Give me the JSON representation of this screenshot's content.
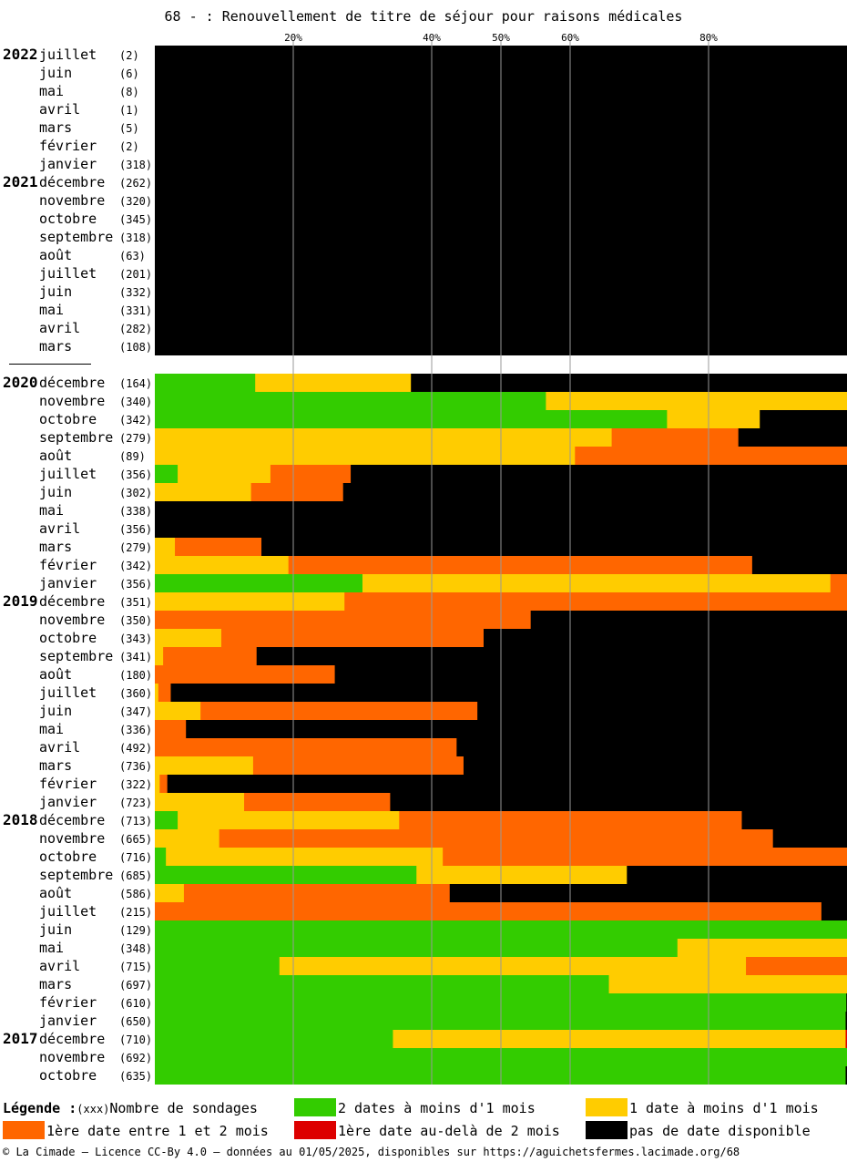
{
  "chart_data": {
    "type": "bar",
    "stacked": true,
    "orientation": "horizontal",
    "title": "68 - : Renouvellement de titre de séjour pour raisons médicales",
    "x_ticks": [
      "20%",
      "40%",
      "50%",
      "60%",
      "80%"
    ],
    "xlim": [
      0,
      100
    ],
    "grid": true,
    "colors": {
      "green": "#33cc00",
      "yellow": "#ffcc00",
      "orange": "#ff6600",
      "red": "#dd0000",
      "black": "#000000"
    },
    "series_order": [
      "green",
      "yellow",
      "orange",
      "red",
      "black"
    ],
    "rows": [
      {
        "year": "2022",
        "month": "juillet",
        "count": "(2)",
        "values": [
          0,
          0,
          0,
          0,
          100
        ]
      },
      {
        "year": "",
        "month": "juin",
        "count": "(6)",
        "values": [
          0,
          0,
          0,
          0,
          100
        ]
      },
      {
        "year": "",
        "month": "mai",
        "count": "(8)",
        "values": [
          0,
          0,
          0,
          0,
          100
        ]
      },
      {
        "year": "",
        "month": "avril",
        "count": "(1)",
        "values": [
          0,
          0,
          0,
          0,
          100
        ]
      },
      {
        "year": "",
        "month": "mars",
        "count": "(5)",
        "values": [
          0,
          0,
          0,
          0,
          100
        ]
      },
      {
        "year": "",
        "month": "février",
        "count": "(2)",
        "values": [
          0,
          0,
          0,
          0,
          100
        ]
      },
      {
        "year": "",
        "month": "janvier",
        "count": "(318)",
        "values": [
          0,
          0,
          0,
          0,
          100
        ]
      },
      {
        "year": "2021",
        "month": "décembre",
        "count": "(262)",
        "values": [
          0,
          0,
          0,
          0,
          100
        ]
      },
      {
        "year": "",
        "month": "novembre",
        "count": "(320)",
        "values": [
          0,
          0,
          0,
          0,
          100
        ]
      },
      {
        "year": "",
        "month": "octobre",
        "count": "(345)",
        "values": [
          0,
          0,
          0,
          0,
          100
        ]
      },
      {
        "year": "",
        "month": "septembre",
        "count": "(318)",
        "values": [
          0,
          0,
          0,
          0,
          100
        ]
      },
      {
        "year": "",
        "month": "août",
        "count": "(63)",
        "values": [
          0,
          0,
          0,
          0,
          100
        ]
      },
      {
        "year": "",
        "month": "juillet",
        "count": "(201)",
        "values": [
          0,
          0,
          0,
          0,
          100
        ]
      },
      {
        "year": "",
        "month": "juin",
        "count": "(332)",
        "values": [
          0,
          0,
          0,
          0,
          100
        ]
      },
      {
        "year": "",
        "month": "mai",
        "count": "(331)",
        "values": [
          0,
          0,
          0,
          0,
          100
        ]
      },
      {
        "year": "",
        "month": "avril",
        "count": "(282)",
        "values": [
          0,
          0,
          0,
          0,
          100
        ]
      },
      {
        "year": "",
        "month": "mars",
        "count": "(108)",
        "values": [
          0,
          0,
          0,
          0,
          100
        ]
      },
      {
        "separator": true
      },
      {
        "year": "2020",
        "month": "décembre",
        "count": "(164)",
        "values": [
          14.5,
          22.5,
          0,
          0,
          63
        ]
      },
      {
        "year": "",
        "month": "novembre",
        "count": "(340)",
        "values": [
          56.5,
          43.5,
          0,
          0,
          0
        ]
      },
      {
        "year": "",
        "month": "octobre",
        "count": "(342)",
        "values": [
          74,
          13.4,
          0,
          0,
          12.6
        ]
      },
      {
        "year": "",
        "month": "septembre",
        "count": "(279)",
        "values": [
          0,
          66,
          18.3,
          0,
          15.7
        ]
      },
      {
        "year": "",
        "month": "août",
        "count": "(89)",
        "values": [
          0,
          60.7,
          39.3,
          0,
          0
        ]
      },
      {
        "year": "",
        "month": "juillet",
        "count": "(356)",
        "values": [
          3.3,
          13.4,
          11.6,
          0,
          71.7
        ]
      },
      {
        "year": "",
        "month": "juin",
        "count": "(302)",
        "values": [
          0,
          13.9,
          13.3,
          0,
          72.8
        ]
      },
      {
        "year": "",
        "month": "mai",
        "count": "(338)",
        "values": [
          0,
          0,
          0,
          0,
          100
        ]
      },
      {
        "year": "",
        "month": "avril",
        "count": "(356)",
        "values": [
          0,
          0,
          0,
          0,
          100
        ]
      },
      {
        "year": "",
        "month": "mars",
        "count": "(279)",
        "values": [
          0,
          2.9,
          12.5,
          0,
          84.6
        ]
      },
      {
        "year": "",
        "month": "février",
        "count": "(342)",
        "values": [
          0,
          19.3,
          67,
          0,
          13.7
        ]
      },
      {
        "year": "",
        "month": "janvier",
        "count": "(356)",
        "values": [
          30,
          67.6,
          2.4,
          0,
          0
        ]
      },
      {
        "year": "2019",
        "month": "décembre",
        "count": "(351)",
        "values": [
          0,
          27.4,
          72.6,
          0,
          0
        ]
      },
      {
        "year": "",
        "month": "novembre",
        "count": "(350)",
        "values": [
          0,
          0,
          54.3,
          0,
          45.7
        ]
      },
      {
        "year": "",
        "month": "octobre",
        "count": "(343)",
        "values": [
          0,
          9.6,
          37.9,
          0,
          52.5
        ]
      },
      {
        "year": "",
        "month": "septembre",
        "count": "(341)",
        "values": [
          0,
          1.2,
          13.5,
          0,
          85.3
        ]
      },
      {
        "year": "",
        "month": "août",
        "count": "(180)",
        "values": [
          0,
          0,
          26,
          0,
          74
        ]
      },
      {
        "year": "",
        "month": "juillet",
        "count": "(360)",
        "values": [
          0,
          0.5,
          1.8,
          0,
          97.7
        ]
      },
      {
        "year": "",
        "month": "juin",
        "count": "(347)",
        "values": [
          0,
          6.6,
          40,
          0,
          53.4
        ]
      },
      {
        "year": "",
        "month": "mai",
        "count": "(336)",
        "values": [
          0,
          0,
          4.5,
          0,
          95.5
        ]
      },
      {
        "year": "",
        "month": "avril",
        "count": "(492)",
        "values": [
          0,
          0,
          43.6,
          0,
          56.4
        ]
      },
      {
        "year": "",
        "month": "mars",
        "count": "(736)",
        "values": [
          0,
          14.2,
          30.4,
          0,
          55.4
        ]
      },
      {
        "year": "",
        "month": "février",
        "count": "(322)",
        "values": [
          0,
          0.7,
          1.1,
          0,
          98.2
        ]
      },
      {
        "year": "",
        "month": "janvier",
        "count": "(723)",
        "values": [
          0,
          12.9,
          21.1,
          0,
          66
        ]
      },
      {
        "year": "2018",
        "month": "décembre",
        "count": "(713)",
        "values": [
          3.3,
          32,
          49.5,
          0,
          15.2
        ]
      },
      {
        "year": "",
        "month": "novembre",
        "count": "(665)",
        "values": [
          0,
          9.3,
          80,
          0,
          10.7
        ]
      },
      {
        "year": "",
        "month": "octobre",
        "count": "(716)",
        "values": [
          1.6,
          40,
          58.4,
          0,
          0
        ]
      },
      {
        "year": "",
        "month": "septembre",
        "count": "(685)",
        "values": [
          37.8,
          30.4,
          0,
          0,
          31.8
        ]
      },
      {
        "year": "",
        "month": "août",
        "count": "(586)",
        "values": [
          0,
          4.2,
          38.4,
          0,
          57.4
        ]
      },
      {
        "year": "",
        "month": "juillet",
        "count": "(215)",
        "values": [
          0,
          0,
          96.3,
          0,
          3.7
        ]
      },
      {
        "year": "",
        "month": "juin",
        "count": "(129)",
        "values": [
          100,
          0,
          0,
          0,
          0
        ]
      },
      {
        "year": "",
        "month": "mai",
        "count": "(348)",
        "values": [
          75.5,
          24.5,
          0,
          0,
          0
        ]
      },
      {
        "year": "",
        "month": "avril",
        "count": "(715)",
        "values": [
          18,
          67.4,
          14.6,
          0,
          0
        ]
      },
      {
        "year": "",
        "month": "mars",
        "count": "(697)",
        "values": [
          65.6,
          34.4,
          0,
          0,
          0
        ]
      },
      {
        "year": "",
        "month": "février",
        "count": "(610)",
        "values": [
          99.9,
          0,
          0,
          0,
          0.1
        ]
      },
      {
        "year": "",
        "month": "janvier",
        "count": "(650)",
        "values": [
          99.8,
          0,
          0,
          0,
          0.2
        ]
      },
      {
        "year": "2017",
        "month": "décembre",
        "count": "(710)",
        "values": [
          34.4,
          65.4,
          0,
          0.2,
          0
        ]
      },
      {
        "year": "",
        "month": "novembre",
        "count": "(692)",
        "values": [
          100,
          0,
          0,
          0,
          0
        ]
      },
      {
        "year": "",
        "month": "octobre",
        "count": "(635)",
        "values": [
          99.8,
          0,
          0,
          0,
          0.2
        ]
      }
    ]
  },
  "legend": {
    "title": "Légende :",
    "count_sample": "(xxx)",
    "count_label": "Nombre de sondages",
    "items": [
      {
        "color": "#33cc00",
        "label": "2 dates à moins d'1 mois"
      },
      {
        "color": "#ffcc00",
        "label": "1 date à moins d'1 mois"
      },
      {
        "color": "#ff6600",
        "label": "1ère date entre 1 et 2 mois"
      },
      {
        "color": "#dd0000",
        "label": "1ère date au-delà de 2 mois"
      },
      {
        "color": "#000000",
        "label": "pas de date disponible"
      }
    ]
  },
  "footer": {
    "copyright": "© La Cimade — Licence CC-By 4.0 — données au 01/05/2025, disponibles sur https://aguichetsfermes.lacimade.org/68"
  }
}
